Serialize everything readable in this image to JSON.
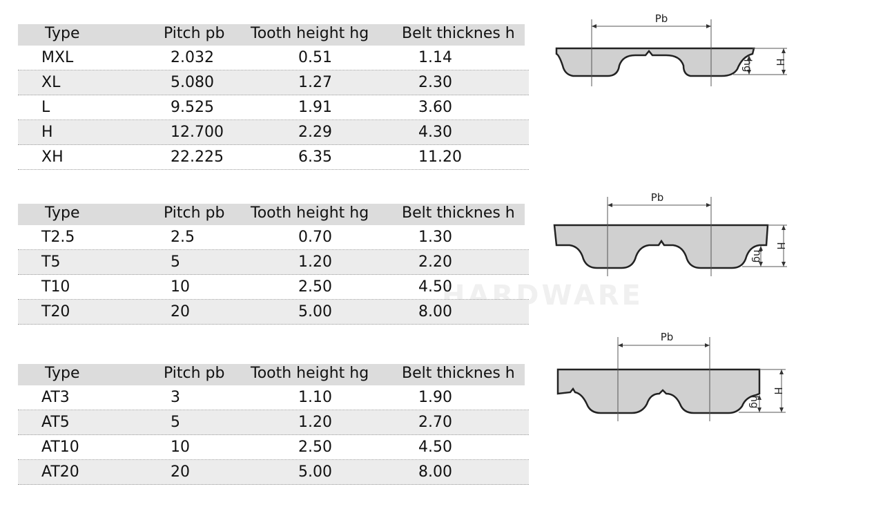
{
  "tables": [
    {
      "header": [
        "Type",
        "Pitch pb",
        "Tooth height hg",
        "Belt thicknes h"
      ],
      "rows": [
        [
          "MXL",
          "2.032",
          "0.51",
          "1.14"
        ],
        [
          "XL",
          "5.080",
          "1.27",
          "2.30"
        ],
        [
          "L",
          "9.525",
          "1.91",
          "3.60"
        ],
        [
          "H",
          "12.700",
          "2.29",
          "4.30"
        ],
        [
          "XH",
          "22.225",
          "6.35",
          "11.20"
        ]
      ]
    },
    {
      "header": [
        "Type",
        "Pitch pb",
        "Tooth height hg",
        "Belt thicknes h"
      ],
      "rows": [
        [
          "T2.5",
          "2.5",
          "0.70",
          "1.30"
        ],
        [
          "T5",
          "5",
          "1.20",
          "2.20"
        ],
        [
          "T10",
          "10",
          "2.50",
          "4.50"
        ],
        [
          "T20",
          "20",
          "5.00",
          "8.00"
        ]
      ]
    },
    {
      "header": [
        "Type",
        "Pitch pb",
        "Tooth height hg",
        "Belt thicknes h"
      ],
      "rows": [
        [
          "AT3",
          "3",
          "1.10",
          "1.90"
        ],
        [
          "AT5",
          "5",
          "1.20",
          "2.70"
        ],
        [
          "AT10",
          "10",
          "2.50",
          "4.50"
        ],
        [
          "AT20",
          "20",
          "5.00",
          "8.00"
        ]
      ]
    }
  ],
  "diagrams": [
    {
      "pitch_label": "Pb",
      "tooth_label": "hg",
      "height_label": "H"
    },
    {
      "pitch_label": "Pb",
      "tooth_label": "hg",
      "height_label": "H"
    },
    {
      "pitch_label": "Pb",
      "tooth_label": "hg",
      "height_label": "H"
    }
  ],
  "watermark": "HARDWARE"
}
